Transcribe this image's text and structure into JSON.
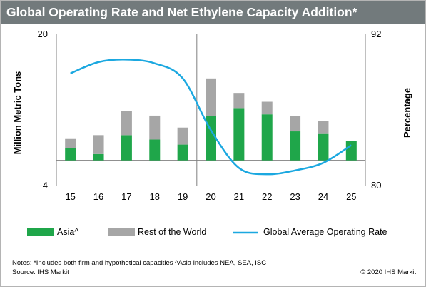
{
  "chart_data": {
    "type": "bar",
    "title": "Global Operating Rate and Net Ethylene Capacity Addition*",
    "categories": [
      "15",
      "16",
      "17",
      "18",
      "19",
      "20",
      "21",
      "22",
      "23",
      "24",
      "25"
    ],
    "series": [
      {
        "name": "Asia^",
        "values": [
          2.0,
          1.0,
          4.0,
          3.3,
          2.5,
          7.0,
          8.3,
          7.3,
          4.6,
          4.3,
          3.1
        ],
        "color": "#1fa64a"
      },
      {
        "name": "Rest of the World",
        "values": [
          1.5,
          3.0,
          3.8,
          3.8,
          2.7,
          6.0,
          2.4,
          2.0,
          2.4,
          2.0,
          0.0
        ],
        "color": "#a6a6a6"
      },
      {
        "name": "Global Average Operating Rate",
        "type": "line",
        "axis": "right",
        "values": [
          88.9,
          89.8,
          90.0,
          89.7,
          88.5,
          84.4,
          81.4,
          80.9,
          81.2,
          81.8,
          83.2
        ],
        "color": "#1ba8e0"
      }
    ],
    "ylabel": "Million Metric Tons",
    "ylim": [
      -4,
      20
    ],
    "yticks": [
      "20",
      "-4"
    ],
    "y2label": "Percentage",
    "y2lim": [
      80,
      92
    ],
    "y2ticks": [
      "92",
      "80"
    ],
    "stacked": true,
    "legend_position": "bottom",
    "grid": false
  },
  "notes": "Notes: *Includes both firm and hypothetical capacities ^Asia includes NEA, SEA, ISC",
  "source": "Source: IHS Markit",
  "copyright": "© 2020 IHS Markit"
}
